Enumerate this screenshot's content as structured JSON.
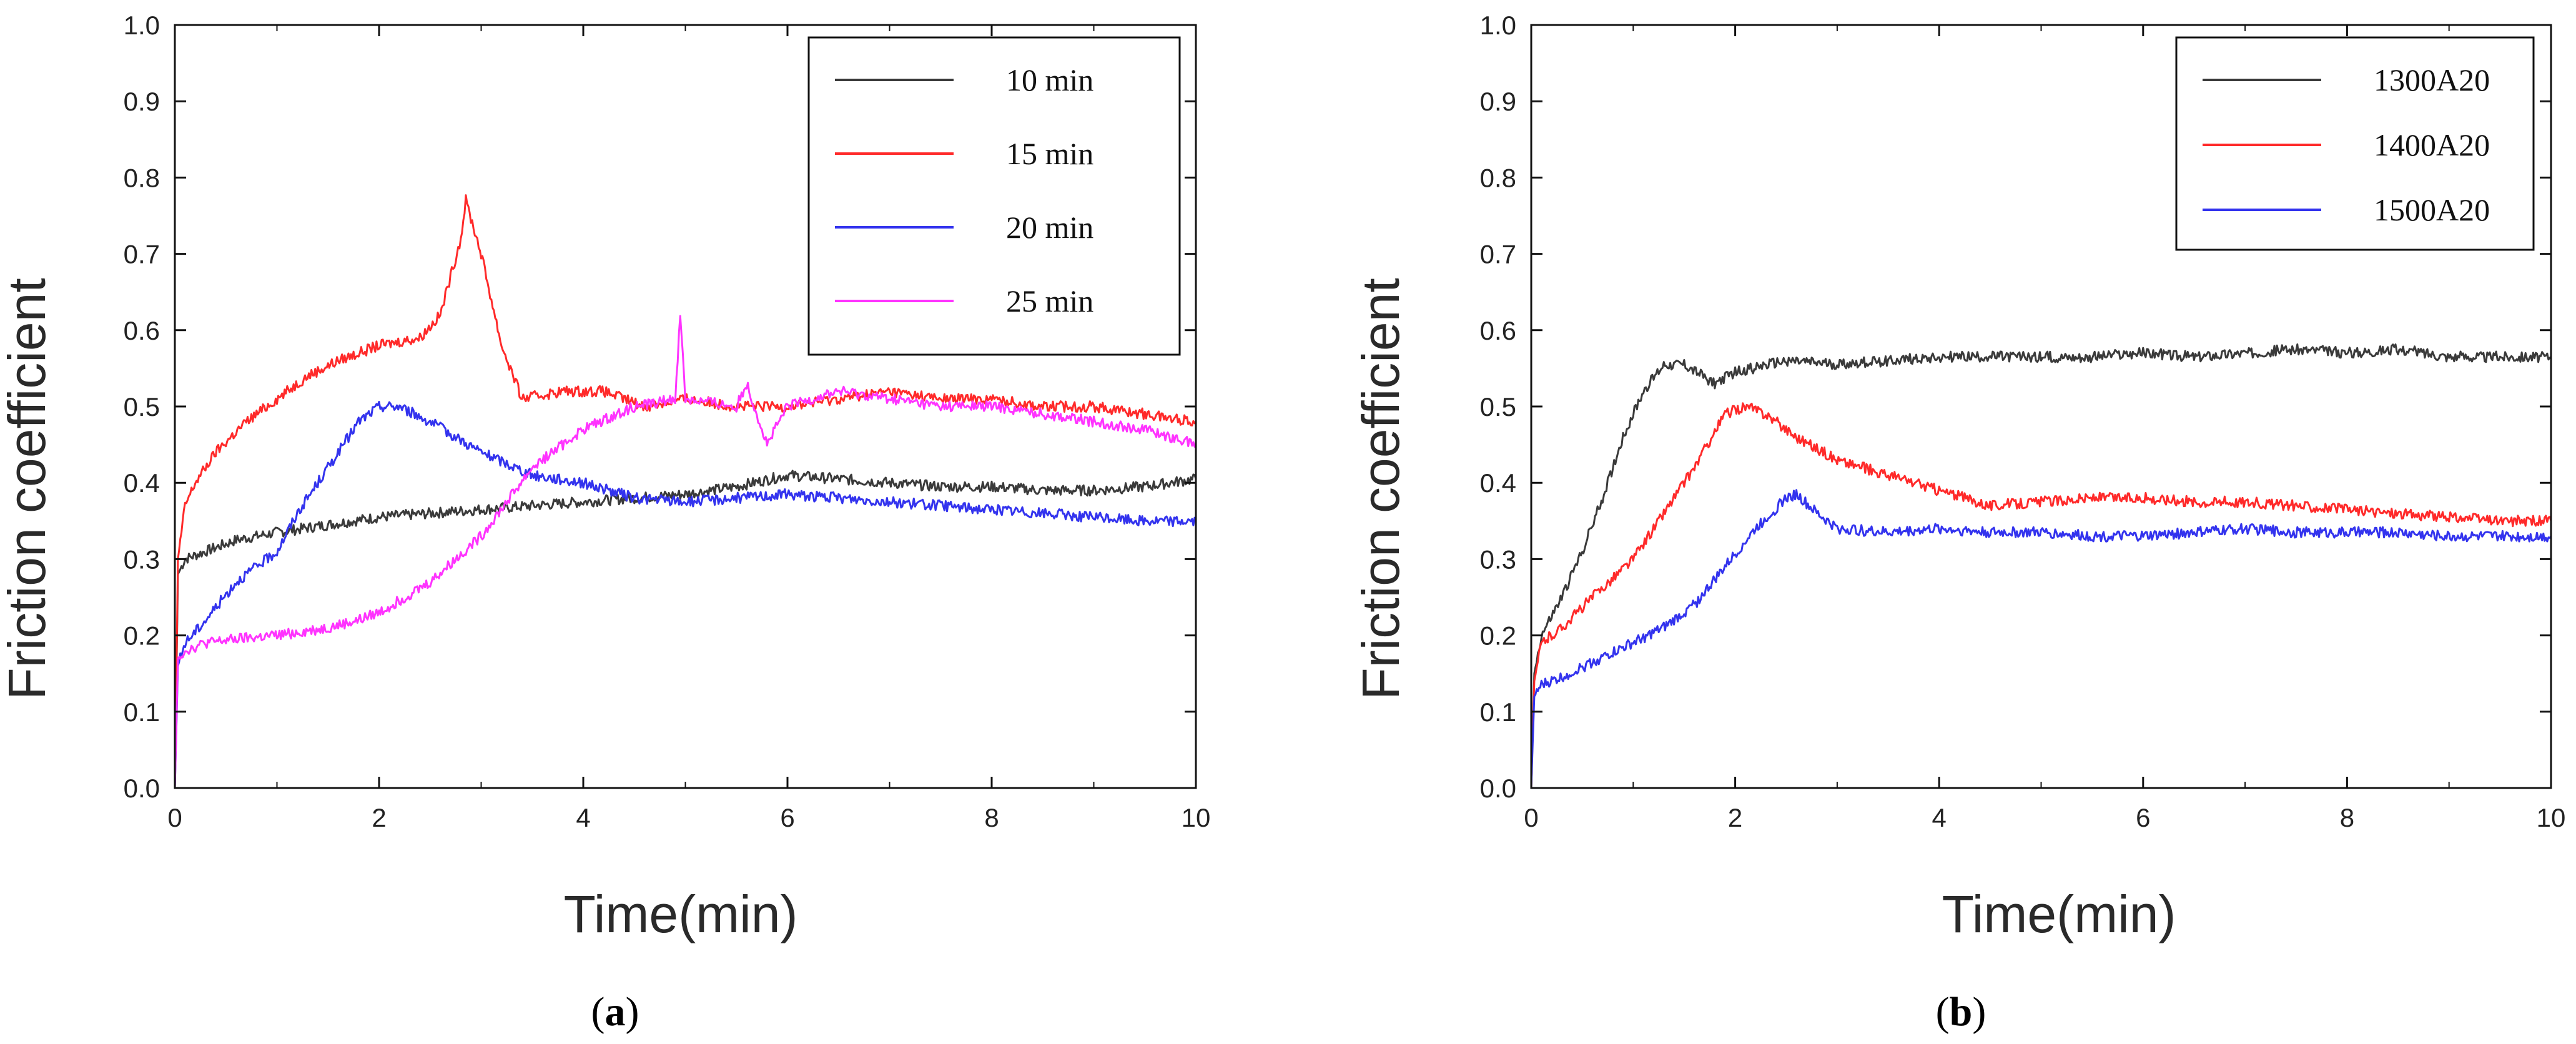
{
  "chart_data": [
    {
      "type": "line",
      "panel_label": "a",
      "xlabel": "Time(min)",
      "ylabel": "Friction coefficient",
      "xlim": [
        0,
        10
      ],
      "ylim": [
        0,
        1.0
      ],
      "x_ticks": [
        "0",
        "2",
        "4",
        "6",
        "8",
        "10"
      ],
      "y_ticks": [
        "0.0",
        "0.1",
        "0.2",
        "0.3",
        "0.4",
        "0.5",
        "0.6",
        "0.7",
        "0.8",
        "0.9",
        "1.0"
      ],
      "grid": false,
      "legend_position": "top-right",
      "series": [
        {
          "name": "10 min",
          "color": "#3a3a3a",
          "x": [
            0,
            0.03,
            0.1,
            0.3,
            0.6,
            1.0,
            1.5,
            2.0,
            2.5,
            3.0,
            3.5,
            4.0,
            4.5,
            5.0,
            5.5,
            6.0,
            6.5,
            7.0,
            7.5,
            8.0,
            8.5,
            9.0,
            9.5,
            10.0
          ],
          "y": [
            0.0,
            0.28,
            0.3,
            0.31,
            0.325,
            0.335,
            0.345,
            0.355,
            0.36,
            0.365,
            0.37,
            0.375,
            0.38,
            0.385,
            0.395,
            0.41,
            0.405,
            0.4,
            0.395,
            0.395,
            0.39,
            0.39,
            0.395,
            0.405
          ]
        },
        {
          "name": "15 min",
          "color": "#ff2a2a",
          "x": [
            0,
            0.03,
            0.1,
            0.2,
            0.4,
            0.7,
            1.0,
            1.3,
            1.6,
            2.0,
            2.4,
            2.6,
            2.8,
            2.85,
            3.0,
            3.2,
            3.4,
            3.8,
            4.2,
            4.6,
            5.0,
            5.5,
            6.0,
            6.5,
            7.0,
            7.5,
            8.0,
            8.5,
            9.0,
            9.5,
            10.0
          ],
          "y": [
            0.0,
            0.3,
            0.37,
            0.4,
            0.44,
            0.48,
            0.51,
            0.54,
            0.56,
            0.58,
            0.59,
            0.62,
            0.72,
            0.77,
            0.7,
            0.58,
            0.51,
            0.52,
            0.52,
            0.5,
            0.51,
            0.5,
            0.5,
            0.51,
            0.52,
            0.51,
            0.51,
            0.5,
            0.5,
            0.49,
            0.48
          ]
        },
        {
          "name": "20 min",
          "color": "#3333ee",
          "x": [
            0,
            0.03,
            0.1,
            0.3,
            0.6,
            1.0,
            1.2,
            1.5,
            1.8,
            2.0,
            2.2,
            2.5,
            3.0,
            3.5,
            4.0,
            4.5,
            5.0,
            5.5,
            6.0,
            6.5,
            7.0,
            7.5,
            8.0,
            8.5,
            9.0,
            9.5,
            10.0
          ],
          "y": [
            0.0,
            0.16,
            0.19,
            0.22,
            0.27,
            0.31,
            0.36,
            0.42,
            0.48,
            0.5,
            0.5,
            0.48,
            0.44,
            0.41,
            0.4,
            0.38,
            0.375,
            0.38,
            0.385,
            0.38,
            0.375,
            0.37,
            0.365,
            0.36,
            0.355,
            0.35,
            0.35
          ]
        },
        {
          "name": "25 min",
          "color": "#ff33ff",
          "x": [
            0,
            0.03,
            0.1,
            0.3,
            0.6,
            1.0,
            1.5,
            1.8,
            2.0,
            2.5,
            3.0,
            3.5,
            4.0,
            4.5,
            4.9,
            4.95,
            5.0,
            5.5,
            5.6,
            5.8,
            6.0,
            6.5,
            7.0,
            7.5,
            8.0,
            8.5,
            9.0,
            9.5,
            10.0
          ],
          "y": [
            0.0,
            0.17,
            0.18,
            0.19,
            0.195,
            0.2,
            0.21,
            0.22,
            0.23,
            0.27,
            0.33,
            0.42,
            0.47,
            0.5,
            0.51,
            0.62,
            0.51,
            0.5,
            0.53,
            0.45,
            0.5,
            0.52,
            0.51,
            0.5,
            0.5,
            0.49,
            0.48,
            0.47,
            0.45
          ]
        }
      ]
    },
    {
      "type": "line",
      "panel_label": "b",
      "xlabel": "Time(min)",
      "ylabel": "Friction coefficient",
      "xlim": [
        0,
        10
      ],
      "ylim": [
        0,
        1.0
      ],
      "x_ticks": [
        "0",
        "2",
        "4",
        "6",
        "8",
        "10"
      ],
      "y_ticks": [
        "0.0",
        "0.1",
        "0.2",
        "0.3",
        "0.4",
        "0.5",
        "0.6",
        "0.7",
        "0.8",
        "0.9",
        "1.0"
      ],
      "grid": false,
      "legend_position": "top-right",
      "series": [
        {
          "name": "1300A20",
          "color": "#3a3a3a",
          "x": [
            0,
            0.03,
            0.1,
            0.3,
            0.5,
            0.7,
            0.9,
            1.1,
            1.3,
            1.5,
            1.8,
            2.0,
            2.5,
            3.0,
            3.5,
            4.0,
            4.5,
            5.0,
            5.5,
            6.0,
            6.5,
            7.0,
            7.5,
            8.0,
            8.5,
            9.0,
            9.5,
            10.0
          ],
          "y": [
            0.0,
            0.15,
            0.2,
            0.25,
            0.31,
            0.38,
            0.46,
            0.52,
            0.555,
            0.555,
            0.53,
            0.545,
            0.56,
            0.555,
            0.56,
            0.565,
            0.565,
            0.565,
            0.565,
            0.57,
            0.565,
            0.57,
            0.575,
            0.57,
            0.575,
            0.565,
            0.565,
            0.565
          ]
        },
        {
          "name": "1400A20",
          "color": "#ff2a2a",
          "x": [
            0,
            0.03,
            0.1,
            0.3,
            0.6,
            1.0,
            1.3,
            1.6,
            1.9,
            2.1,
            2.3,
            2.6,
            3.0,
            3.5,
            4.0,
            4.5,
            5.0,
            5.5,
            6.0,
            6.5,
            7.0,
            7.5,
            8.0,
            8.5,
            9.0,
            9.5,
            10.0
          ],
          "y": [
            0.0,
            0.14,
            0.19,
            0.21,
            0.25,
            0.3,
            0.36,
            0.42,
            0.49,
            0.5,
            0.49,
            0.46,
            0.43,
            0.41,
            0.39,
            0.37,
            0.375,
            0.38,
            0.38,
            0.375,
            0.375,
            0.37,
            0.365,
            0.36,
            0.355,
            0.35,
            0.35
          ]
        },
        {
          "name": "1500A20",
          "color": "#3333ee",
          "x": [
            0,
            0.03,
            0.1,
            0.3,
            0.6,
            1.0,
            1.3,
            1.6,
            1.9,
            2.2,
            2.5,
            2.6,
            2.8,
            3.0,
            3.5,
            4.0,
            4.5,
            5.0,
            5.5,
            6.0,
            6.5,
            7.0,
            7.5,
            8.0,
            8.5,
            9.0,
            9.5,
            10.0
          ],
          "y": [
            0.0,
            0.12,
            0.135,
            0.145,
            0.165,
            0.19,
            0.21,
            0.24,
            0.29,
            0.34,
            0.38,
            0.385,
            0.36,
            0.34,
            0.335,
            0.34,
            0.335,
            0.335,
            0.33,
            0.33,
            0.335,
            0.34,
            0.335,
            0.335,
            0.335,
            0.33,
            0.33,
            0.33
          ]
        }
      ]
    }
  ],
  "captions": [
    {
      "open": "(",
      "label": "a",
      "close": ")"
    },
    {
      "open": "(",
      "label": "b",
      "close": ")"
    }
  ]
}
